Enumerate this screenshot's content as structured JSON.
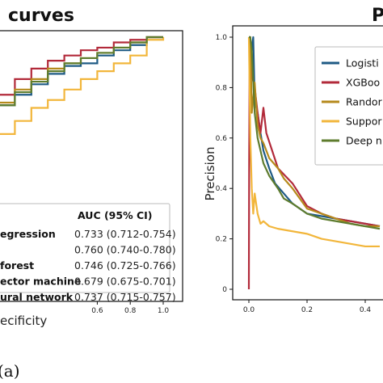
{
  "chart_data": [
    {
      "type": "line",
      "title": "curves",
      "xlabel": "ecificity",
      "ylabel": "",
      "xlim": [
        0.0,
        1.0
      ],
      "ylim": [
        0.0,
        1.0
      ],
      "x_ticks": [
        "0.6",
        "0.8",
        "1.0"
      ],
      "x_tick_values": [
        0.6,
        0.8,
        1.0
      ],
      "table_header": "AUC (95% CI)",
      "series": [
        {
          "name": "egression",
          "auc": "0.733 (0.712-0.754)",
          "color": "#1f5b85",
          "x": [
            0.0,
            0.1,
            0.2,
            0.3,
            0.4,
            0.5,
            0.6,
            0.7,
            0.8,
            0.9,
            1.0
          ],
          "y": [
            0.74,
            0.78,
            0.82,
            0.86,
            0.89,
            0.9,
            0.93,
            0.95,
            0.97,
            1.0,
            1.0
          ]
        },
        {
          "name": "",
          "auc": "0.760 (0.740-0.780)",
          "color": "#b22a3a",
          "x": [
            0.0,
            0.1,
            0.2,
            0.3,
            0.4,
            0.5,
            0.6,
            0.7,
            0.8,
            0.9,
            1.0
          ],
          "y": [
            0.78,
            0.84,
            0.88,
            0.91,
            0.93,
            0.95,
            0.96,
            0.98,
            0.99,
            1.0,
            1.0
          ]
        },
        {
          "name": "forest",
          "auc": "0.746 (0.725-0.766)",
          "color": "#b58a1c",
          "x": [
            0.0,
            0.1,
            0.2,
            0.3,
            0.4,
            0.5,
            0.6,
            0.7,
            0.8,
            0.9,
            1.0
          ],
          "y": [
            0.75,
            0.8,
            0.84,
            0.88,
            0.9,
            0.92,
            0.94,
            0.96,
            0.98,
            1.0,
            1.0
          ]
        },
        {
          "name": "ector machine",
          "auc": "0.679 (0.675-0.701)",
          "color": "#f2b63b",
          "x": [
            0.0,
            0.1,
            0.2,
            0.3,
            0.4,
            0.5,
            0.6,
            0.7,
            0.8,
            0.9,
            1.0
          ],
          "y": [
            0.63,
            0.68,
            0.73,
            0.76,
            0.8,
            0.84,
            0.87,
            0.9,
            0.93,
            0.99,
            1.0
          ]
        },
        {
          "name": "ural network",
          "auc": "0.737 (0.715-0.757)",
          "color": "#5e7c2e",
          "x": [
            0.0,
            0.1,
            0.2,
            0.3,
            0.4,
            0.5,
            0.6,
            0.7,
            0.8,
            0.9,
            1.0
          ],
          "y": [
            0.74,
            0.79,
            0.83,
            0.87,
            0.9,
            0.92,
            0.94,
            0.96,
            0.98,
            1.0,
            1.0
          ]
        }
      ]
    },
    {
      "type": "line",
      "title": "P",
      "xlabel": "",
      "ylabel": "Precision",
      "xlim": [
        0.0,
        0.45
      ],
      "ylim": [
        0.0,
        1.0
      ],
      "x_ticks": [
        "0.0",
        "0.2",
        "0.4"
      ],
      "x_tick_values": [
        0.0,
        0.2,
        0.4
      ],
      "y_ticks": [
        "0",
        "0.2",
        "0.4",
        "0.6",
        "0.8",
        "1.0"
      ],
      "y_tick_values": [
        0.0,
        0.2,
        0.4,
        0.6,
        0.8,
        1.0
      ],
      "series": [
        {
          "name": "Logisti",
          "color": "#1f5b85",
          "x": [
            0.0,
            0.005,
            0.005,
            0.015,
            0.02,
            0.03,
            0.04,
            0.05,
            0.07,
            0.09,
            0.12,
            0.15,
            0.2,
            0.25,
            0.3,
            0.35,
            0.4,
            0.45
          ],
          "y": [
            1.0,
            1.0,
            0.9,
            1.0,
            0.75,
            0.7,
            0.62,
            0.55,
            0.48,
            0.42,
            0.38,
            0.34,
            0.3,
            0.29,
            0.28,
            0.27,
            0.26,
            0.25
          ]
        },
        {
          "name": "XGBoo",
          "color": "#b22a3a",
          "x": [
            0.0,
            0.001,
            0.003,
            0.01,
            0.02,
            0.03,
            0.04,
            0.05,
            0.06,
            0.08,
            0.1,
            0.15,
            0.2,
            0.25,
            0.3,
            0.35,
            0.4,
            0.45
          ],
          "y": [
            0.0,
            0.5,
            1.0,
            0.85,
            0.8,
            0.7,
            0.62,
            0.72,
            0.62,
            0.55,
            0.48,
            0.42,
            0.33,
            0.3,
            0.28,
            0.27,
            0.26,
            0.25
          ]
        },
        {
          "name": "Randor",
          "color": "#b58a1c",
          "x": [
            0.0,
            0.005,
            0.01,
            0.02,
            0.03,
            0.04,
            0.05,
            0.07,
            0.1,
            0.12,
            0.15,
            0.2,
            0.25,
            0.3,
            0.35,
            0.4,
            0.45
          ],
          "y": [
            1.0,
            1.0,
            0.7,
            0.82,
            0.65,
            0.6,
            0.58,
            0.52,
            0.48,
            0.44,
            0.4,
            0.32,
            0.3,
            0.28,
            0.26,
            0.25,
            0.25
          ]
        },
        {
          "name": "Suppor",
          "color": "#f2b63b",
          "x": [
            0.0,
            0.005,
            0.01,
            0.015,
            0.02,
            0.03,
            0.04,
            0.05,
            0.07,
            0.1,
            0.15,
            0.2,
            0.25,
            0.3,
            0.35,
            0.4,
            0.45
          ],
          "y": [
            1.0,
            0.6,
            0.4,
            0.3,
            0.38,
            0.3,
            0.26,
            0.27,
            0.25,
            0.24,
            0.23,
            0.22,
            0.2,
            0.19,
            0.18,
            0.17,
            0.17
          ]
        },
        {
          "name": "Deep n",
          "color": "#5e7c2e",
          "x": [
            0.0,
            0.005,
            0.01,
            0.02,
            0.03,
            0.04,
            0.05,
            0.07,
            0.1,
            0.12,
            0.15,
            0.2,
            0.25,
            0.3,
            0.35,
            0.4,
            0.45
          ],
          "y": [
            1.0,
            1.0,
            0.95,
            0.7,
            0.6,
            0.55,
            0.5,
            0.45,
            0.4,
            0.36,
            0.34,
            0.3,
            0.28,
            0.27,
            0.26,
            0.25,
            0.24
          ]
        }
      ]
    }
  ],
  "panel_label": "(a)"
}
